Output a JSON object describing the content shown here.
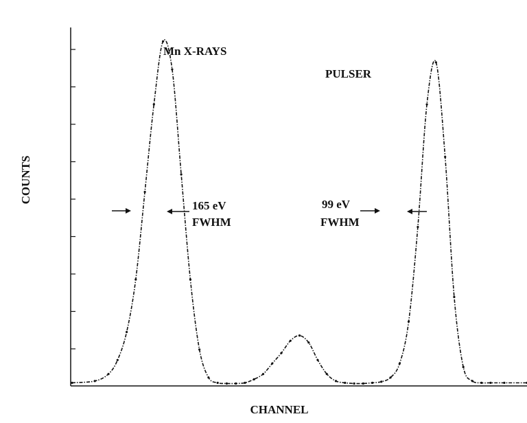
{
  "chart_data": {
    "type": "line",
    "title": "",
    "xlabel": "CHANNEL",
    "ylabel": "COUNTS",
    "xlim": [
      0,
      100
    ],
    "ylim": [
      0,
      100
    ],
    "grid": false,
    "tick_count_y": 9,
    "x": [
      0,
      5,
      8,
      10,
      12,
      14,
      16,
      18,
      20,
      22,
      24,
      26,
      28,
      30,
      32,
      34,
      36,
      38,
      40,
      42,
      44,
      46,
      48,
      50,
      52,
      54,
      56,
      58,
      60,
      62,
      64,
      66,
      68,
      70,
      72,
      74,
      76,
      78,
      80,
      82,
      84,
      86,
      88,
      90,
      92,
      95,
      100
    ],
    "series": [
      {
        "values": [
          0.5,
          1,
          3,
          7,
          15,
          30,
          55,
          80,
          98,
          90,
          60,
          30,
          10,
          2,
          0.5,
          0.3,
          0.3,
          0.5,
          1.5,
          3,
          6,
          9,
          12.5,
          14,
          12,
          7,
          3,
          1,
          0.5,
          0.3,
          0.3,
          0.5,
          0.8,
          2,
          6,
          18,
          45,
          80,
          92,
          65,
          25,
          5,
          1,
          0.5,
          0.5,
          0.5,
          0.5
        ]
      }
    ],
    "annotations": {
      "mn_xrays": "Mn  X-RAYS",
      "pulser": "PULSER",
      "fwhm_left_value": "165 eV",
      "fwhm_left_unit": "FWHM",
      "fwhm_right_value": "99 eV",
      "fwhm_right_unit": "FWHM"
    }
  }
}
